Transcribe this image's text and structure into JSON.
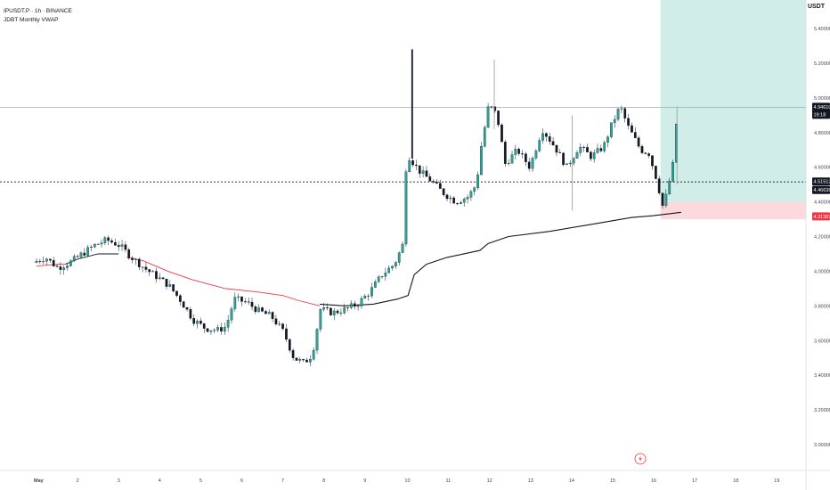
{
  "legend": {
    "symbol_line": "IPUSDT.P · 1h · BINANCE",
    "indicator_line": "JDBT Monthly VWAP"
  },
  "quote_currency": "USDT",
  "colors": {
    "up": "#26a69a",
    "down": "#131722",
    "vwap_before": "#f23645",
    "vwap_after": "#131722",
    "target_zone": "#d1ede8",
    "stop_zone": "#fbd9dc",
    "price_tag": "#131722",
    "stop_tag": "#f23645"
  },
  "chart_data": {
    "type": "candlestick",
    "title": "IPUSDT.P · 1h · BINANCE",
    "y_axis": {
      "ticks": [
        "5.40000",
        "5.20000",
        "5.00000",
        "4.80000",
        "4.60000",
        "4.40000",
        "4.20000",
        "4.00000",
        "3.80000",
        "3.60000",
        "3.40000",
        "3.20000",
        "3.00000"
      ],
      "ylim": [
        2.95,
        5.52
      ]
    },
    "x_axis": {
      "ticks": [
        "May",
        "2",
        "3",
        "4",
        "5",
        "6",
        "7",
        "8",
        "9",
        "10",
        "11",
        "12",
        "13",
        "14",
        "15",
        "16",
        "17",
        "18",
        "19"
      ]
    },
    "price_tags": [
      {
        "label": "4.94610",
        "sub": "19:18",
        "value": 4.946
      },
      {
        "label": "4.51512",
        "value": 4.515
      },
      {
        "label": "4.46638",
        "value": 4.466
      },
      {
        "label": "4.31387",
        "value": 4.314
      }
    ],
    "horizontal_lines": [
      {
        "value": 4.946,
        "style": "solid"
      },
      {
        "value": 4.515,
        "style": "dashed"
      }
    ],
    "position_zones": {
      "entry": 4.46,
      "target": 5.52,
      "stop": 4.3,
      "start_day": 15.2
    },
    "close_path_daily": [
      [
        0,
        4.05
      ],
      [
        0.3,
        4.08
      ],
      [
        0.6,
        4.02
      ],
      [
        0.9,
        4.05
      ],
      [
        1.2,
        4.1
      ],
      [
        1.5,
        4.15
      ],
      [
        1.8,
        4.18
      ],
      [
        2.1,
        4.15
      ],
      [
        2.4,
        4.08
      ],
      [
        2.7,
        4.02
      ],
      [
        3.0,
        3.97
      ],
      [
        3.3,
        3.92
      ],
      [
        3.6,
        3.83
      ],
      [
        3.9,
        3.72
      ],
      [
        4.2,
        3.67
      ],
      [
        4.5,
        3.66
      ],
      [
        4.7,
        3.68
      ],
      [
        4.9,
        3.84
      ],
      [
        5.2,
        3.82
      ],
      [
        5.5,
        3.77
      ],
      [
        5.8,
        3.74
      ],
      [
        6.1,
        3.65
      ],
      [
        6.35,
        3.5
      ],
      [
        6.6,
        3.47
      ],
      [
        6.8,
        3.52
      ],
      [
        7.0,
        3.78
      ],
      [
        7.3,
        3.76
      ],
      [
        7.6,
        3.78
      ],
      [
        7.9,
        3.81
      ],
      [
        8.2,
        3.88
      ],
      [
        8.5,
        3.98
      ],
      [
        8.8,
        4.04
      ],
      [
        9.0,
        4.15
      ],
      [
        9.05,
        4.42
      ],
      [
        9.1,
        4.68
      ],
      [
        9.4,
        4.58
      ],
      [
        9.7,
        4.52
      ],
      [
        10.0,
        4.45
      ],
      [
        10.3,
        4.4
      ],
      [
        10.6,
        4.43
      ],
      [
        10.8,
        4.5
      ],
      [
        10.9,
        4.7
      ],
      [
        11.1,
        4.96
      ],
      [
        11.3,
        4.9
      ],
      [
        11.5,
        4.62
      ],
      [
        11.8,
        4.7
      ],
      [
        12.1,
        4.6
      ],
      [
        12.4,
        4.82
      ],
      [
        12.7,
        4.72
      ],
      [
        13.0,
        4.6
      ],
      [
        13.3,
        4.72
      ],
      [
        13.6,
        4.66
      ],
      [
        13.9,
        4.72
      ],
      [
        14.1,
        4.85
      ],
      [
        14.3,
        4.95
      ],
      [
        14.5,
        4.83
      ],
      [
        14.8,
        4.7
      ],
      [
        15.0,
        4.68
      ],
      [
        15.2,
        4.52
      ],
      [
        15.35,
        4.36
      ],
      [
        15.5,
        4.52
      ],
      [
        15.6,
        4.63
      ],
      [
        15.65,
        4.85
      ]
    ],
    "spikes": [
      {
        "day": 9.15,
        "high": 5.28,
        "low": 4.65
      },
      {
        "day": 11.15,
        "high": 5.22,
        "low": 4.82
      },
      {
        "day": 13.05,
        "high": 4.9,
        "low": 4.35
      },
      {
        "day": 15.6,
        "high": 4.95,
        "low": 4.5
      }
    ],
    "vwap_segments": [
      {
        "name": "April",
        "points": [
          [
            0,
            4.03
          ],
          [
            1.5,
            4.04
          ],
          [
            2.5,
            4.03
          ],
          [
            3.5,
            3.97
          ],
          [
            4.5,
            3.92
          ],
          [
            5.5,
            3.89
          ],
          [
            6.3,
            3.86
          ],
          [
            6.7,
            3.82
          ],
          [
            7.0,
            3.8
          ]
        ]
      },
      {
        "name": "May",
        "points": [
          [
            0,
            4.03
          ],
          [
            0.5,
            4.05
          ],
          [
            1.0,
            4.08
          ],
          [
            1.5,
            4.1
          ],
          [
            2.0,
            4.1
          ],
          [
            2.4,
            4.09
          ],
          [
            6.9,
            3.81
          ],
          [
            7.5,
            3.8
          ],
          [
            8.2,
            3.81
          ],
          [
            8.8,
            3.84
          ],
          [
            9.05,
            3.86
          ],
          [
            9.2,
            3.98
          ],
          [
            9.5,
            4.04
          ],
          [
            10.0,
            4.08
          ],
          [
            10.8,
            4.12
          ],
          [
            11.0,
            4.16
          ],
          [
            11.5,
            4.2
          ],
          [
            12.5,
            4.23
          ],
          [
            13.5,
            4.27
          ],
          [
            14.5,
            4.31
          ],
          [
            15.0,
            4.32
          ],
          [
            15.7,
            4.34
          ]
        ]
      }
    ]
  }
}
